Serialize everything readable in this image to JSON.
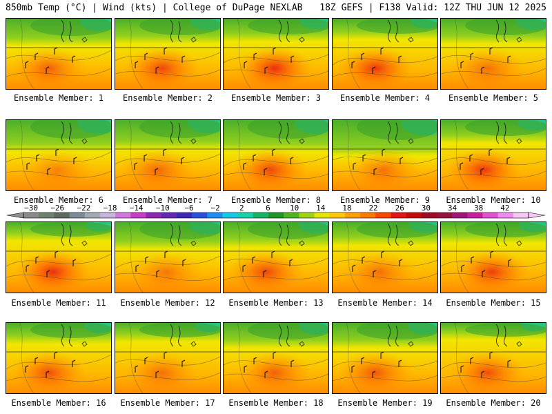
{
  "header": {
    "left": "850mb Temp (°C) | Wind (kts) | College of DuPage NEXLAB",
    "right": "18Z GEFS | F138 Valid: 12Z THU JUN 12 2025"
  },
  "panels": [
    {
      "caption": "Ensemble Member: 1",
      "green": 0.45,
      "heat": 0.55
    },
    {
      "caption": "Ensemble Member: 2",
      "green": 0.4,
      "heat": 0.7
    },
    {
      "caption": "Ensemble Member: 3",
      "green": 0.35,
      "heat": 0.85
    },
    {
      "caption": "Ensemble Member: 4",
      "green": 0.3,
      "heat": 0.8
    },
    {
      "caption": "Ensemble Member: 5",
      "green": 0.4,
      "heat": 0.45
    },
    {
      "caption": "Ensemble Member: 6",
      "green": 0.55,
      "heat": 0.35
    },
    {
      "caption": "Ensemble Member: 7",
      "green": 0.5,
      "heat": 0.5
    },
    {
      "caption": "Ensemble Member: 8",
      "green": 0.55,
      "heat": 0.7
    },
    {
      "caption": "Ensemble Member: 9",
      "green": 0.65,
      "heat": 0.45
    },
    {
      "caption": "Ensemble Member: 10",
      "green": 0.35,
      "heat": 0.8
    },
    {
      "caption": "Ensemble Member: 11",
      "green": 0.25,
      "heat": 0.85
    },
    {
      "caption": "Ensemble Member: 12",
      "green": 0.45,
      "heat": 0.4
    },
    {
      "caption": "Ensemble Member: 13",
      "green": 0.4,
      "heat": 0.7
    },
    {
      "caption": "Ensemble Member: 14",
      "green": 0.35,
      "heat": 0.45
    },
    {
      "caption": "Ensemble Member: 15",
      "green": 0.3,
      "heat": 0.75
    },
    {
      "caption": "Ensemble Member: 16",
      "green": 0.3,
      "heat": 0.65
    },
    {
      "caption": "Ensemble Member: 17",
      "green": 0.25,
      "heat": 0.45
    },
    {
      "caption": "Ensemble Member: 18",
      "green": 0.4,
      "heat": 0.55
    },
    {
      "caption": "Ensemble Member: 19",
      "green": 0.4,
      "heat": 0.6
    },
    {
      "caption": "Ensemble Member: 20",
      "green": 0.2,
      "heat": 0.65
    }
  ],
  "colorbar": {
    "labels": [
      "−30",
      "−26",
      "−22",
      "−18",
      "−14",
      "−10",
      "−6",
      "−2",
      "2",
      "6",
      "10",
      "14",
      "18",
      "22",
      "26",
      "30",
      "34",
      "38",
      "42"
    ],
    "colors": [
      "#8a8a8a",
      "#6e806e",
      "#5e6a5e",
      "#7a8a96",
      "#a0aab4",
      "#c8b4dc",
      "#d278dc",
      "#c83cc8",
      "#8c28b4",
      "#6428b4",
      "#3c28b4",
      "#2850dc",
      "#1e8cf0",
      "#14c8e6",
      "#14d2aa",
      "#14b464",
      "#1e9628",
      "#50b41e",
      "#a0d214",
      "#e6e600",
      "#ffc800",
      "#ffa000",
      "#ff7800",
      "#ff4600",
      "#e61414",
      "#c80a0a",
      "#a00a28",
      "#96143c",
      "#a0147a",
      "#c81ea0",
      "#e650d2",
      "#f08cf0",
      "#f5c8f5"
    ]
  }
}
